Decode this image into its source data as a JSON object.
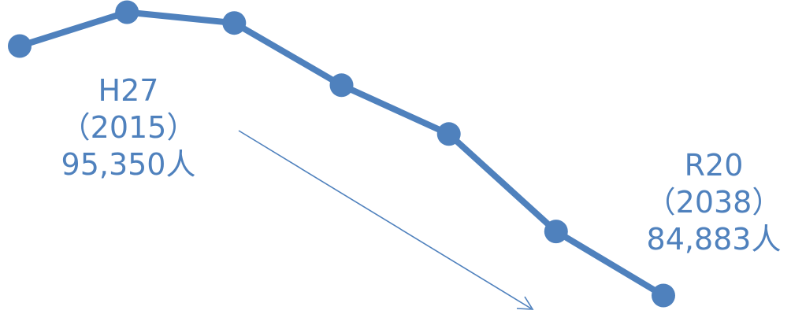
{
  "chart_data": {
    "type": "line",
    "title": "",
    "xlabel": "",
    "ylabel": "",
    "x": [
      "",
      "H27",
      "",
      "",
      "",
      "",
      "R20"
    ],
    "series": [
      {
        "values": [
          94100,
          95350,
          94950,
          92650,
          90850,
          87250,
          84883
        ]
      }
    ],
    "ylim": [
      84200,
      95800
    ],
    "grid": false,
    "legend": "none",
    "line_color": "#4f81bd",
    "annotations": [
      {
        "era": "H27",
        "year": "（2015）",
        "value": "95,350人"
      },
      {
        "era": "R20",
        "year": "（2038）",
        "value": "84,883人"
      }
    ]
  }
}
